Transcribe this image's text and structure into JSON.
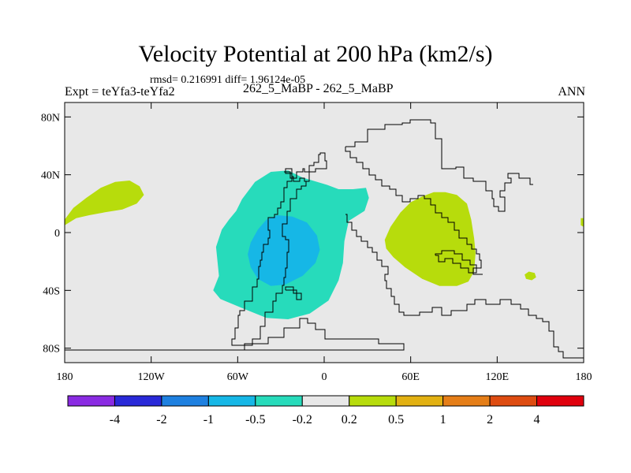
{
  "title": "Velocity Potential at 200 hPa (km2/s)",
  "stats": "rmsd= 0.216991 diff= 1.96124e-05",
  "experiment": "Expt = teYfa3-teYfa2",
  "case": "262_5_MaBP - 262_5_MaBP",
  "season": "ANN",
  "colors": {
    "background": "#e8e8e8",
    "coastline": "#000000"
  },
  "chart_data": {
    "type": "heatmap",
    "title": "Velocity Potential at 200 hPa (km2/s)",
    "xlabel": "",
    "ylabel": "",
    "xlim": [
      -180,
      180
    ],
    "ylim": [
      -90,
      90
    ],
    "x_ticks": [
      {
        "value": -180,
        "label": "180"
      },
      {
        "value": -120,
        "label": "120W"
      },
      {
        "value": -60,
        "label": "60W"
      },
      {
        "value": 0,
        "label": "0"
      },
      {
        "value": 60,
        "label": "60E"
      },
      {
        "value": 120,
        "label": "120E"
      },
      {
        "value": 180,
        "label": "180"
      }
    ],
    "y_ticks": [
      {
        "value": 80,
        "label": "80N"
      },
      {
        "value": 40,
        "label": "40N"
      },
      {
        "value": 0,
        "label": "0"
      },
      {
        "value": -40,
        "label": "40S"
      },
      {
        "value": -80,
        "label": "80S"
      }
    ],
    "colorbar": {
      "levels": [
        "-4",
        "-2",
        "-1",
        "-0.5",
        "-0.2",
        "0.2",
        "0.5",
        "1",
        "2",
        "4"
      ],
      "colors": [
        "#8a2be2",
        "#2929d8",
        "#1e80e0",
        "#16b7e6",
        "#27dbbb",
        "#e8e8e8",
        "#b7dc0c",
        "#e2b112",
        "#e57e18",
        "#de4c11",
        "#e0000d"
      ]
    },
    "regions": [
      {
        "name": "pacific-positive",
        "level": "0.2 to 0.5",
        "color": "#b7dc0c",
        "points": [
          [
            -180,
            9
          ],
          [
            -174,
            17
          ],
          [
            -165,
            24
          ],
          [
            -155,
            31
          ],
          [
            -145,
            35
          ],
          [
            -135,
            36
          ],
          [
            -128,
            32
          ],
          [
            -125,
            26
          ],
          [
            -130,
            20
          ],
          [
            -140,
            16
          ],
          [
            -152,
            14
          ],
          [
            -163,
            12
          ],
          [
            -172,
            10
          ],
          [
            -180,
            5
          ]
        ]
      },
      {
        "name": "africa-asia-positive",
        "level": "0.2 to 0.5",
        "color": "#b7dc0c",
        "points": [
          [
            42,
            -5
          ],
          [
            46,
            4
          ],
          [
            53,
            14
          ],
          [
            60,
            21
          ],
          [
            68,
            25
          ],
          [
            76,
            28
          ],
          [
            84,
            28
          ],
          [
            92,
            26
          ],
          [
            99,
            20
          ],
          [
            102,
            9
          ],
          [
            104,
            -4
          ],
          [
            105,
            -14
          ],
          [
            104,
            -27
          ],
          [
            100,
            -34
          ],
          [
            92,
            -37
          ],
          [
            80,
            -37
          ],
          [
            68,
            -32
          ],
          [
            56,
            -24
          ],
          [
            48,
            -17
          ],
          [
            43,
            -11
          ]
        ]
      },
      {
        "name": "australia-positive",
        "level": "0.2 to 0.5",
        "color": "#b7dc0c",
        "points": [
          [
            139,
            -29
          ],
          [
            142,
            -27
          ],
          [
            146,
            -28
          ],
          [
            147,
            -31
          ],
          [
            144,
            -33
          ],
          [
            140,
            -32
          ]
        ]
      },
      {
        "name": "dateline-positive",
        "level": "0.2 to 0.5",
        "color": "#b7dc0c",
        "points": [
          [
            178,
            10
          ],
          [
            180,
            10
          ],
          [
            180,
            4
          ],
          [
            178,
            5
          ]
        ]
      },
      {
        "name": "atlantic-negative-weak",
        "level": "-0.5 to -0.2",
        "color": "#27dbbb",
        "points": [
          [
            -75,
            -10
          ],
          [
            -71,
            2
          ],
          [
            -66,
            9
          ],
          [
            -61,
            15
          ],
          [
            -57,
            23
          ],
          [
            -48,
            35
          ],
          [
            -37,
            42
          ],
          [
            -25,
            43
          ],
          [
            -15,
            38
          ],
          [
            2,
            33
          ],
          [
            10,
            30
          ],
          [
            20,
            30
          ],
          [
            29,
            31
          ],
          [
            31,
            24
          ],
          [
            28,
            15
          ],
          [
            17,
            8
          ],
          [
            14,
            -6
          ],
          [
            13,
            -21
          ],
          [
            10,
            -33
          ],
          [
            3,
            -47
          ],
          [
            -10,
            -56
          ],
          [
            -25,
            -60
          ],
          [
            -40,
            -59
          ],
          [
            -55,
            -53
          ],
          [
            -72,
            -46
          ],
          [
            -77,
            -40
          ],
          [
            -73,
            -30
          ]
        ]
      },
      {
        "name": "atlantic-negative-strong",
        "level": "-1 to -0.5",
        "color": "#16b7e6",
        "points": [
          [
            -53,
            -15
          ],
          [
            -51,
            -7
          ],
          [
            -46,
            2
          ],
          [
            -40,
            9
          ],
          [
            -32,
            12
          ],
          [
            -22,
            11
          ],
          [
            -12,
            7
          ],
          [
            -5,
            -2
          ],
          [
            -3,
            -12
          ],
          [
            -6,
            -21
          ],
          [
            -15,
            -30
          ],
          [
            -27,
            -36
          ],
          [
            -37,
            -37
          ],
          [
            -46,
            -32
          ],
          [
            -51,
            -24
          ]
        ]
      }
    ]
  }
}
